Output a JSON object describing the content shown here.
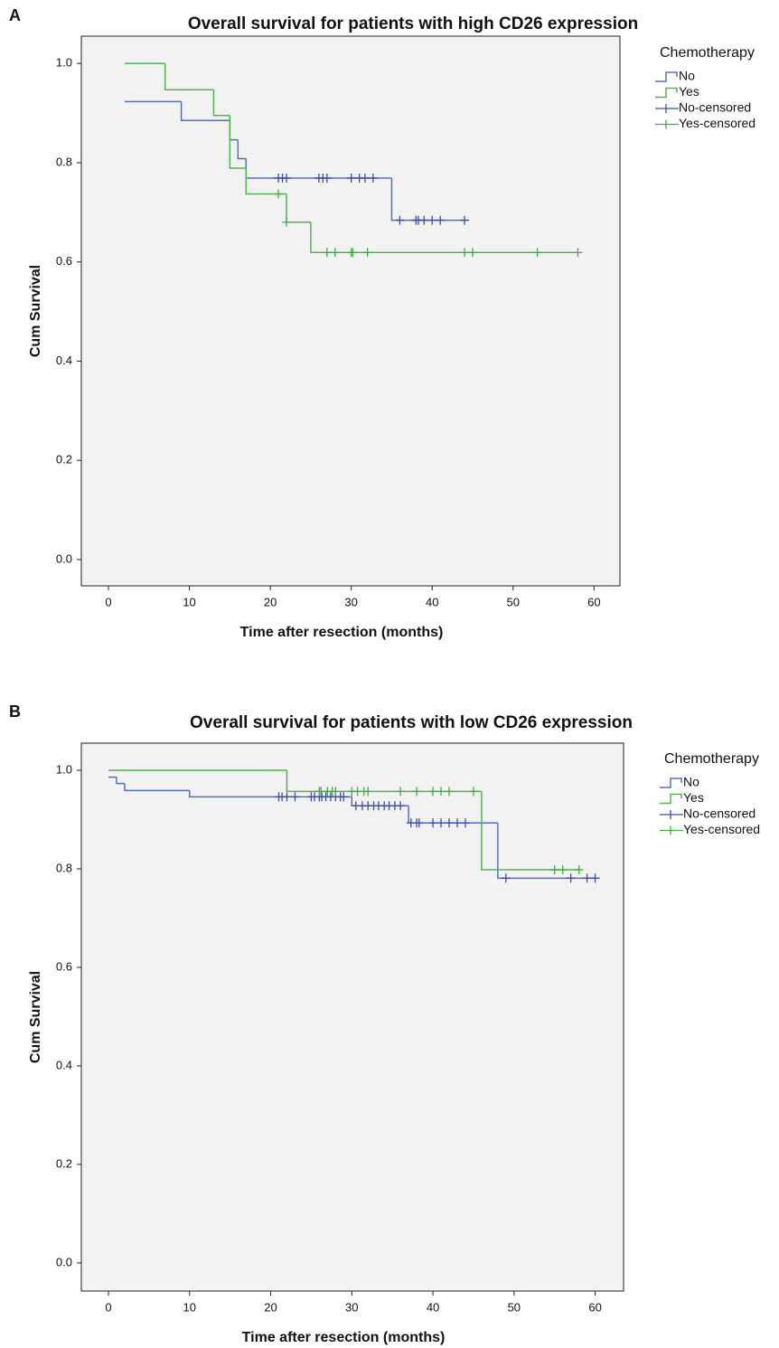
{
  "chart_data": [
    {
      "type": "step",
      "panel": "A",
      "title": "Overall survival for patients with high CD26 expression",
      "x_label": "Time after resection (months)",
      "y_label": "Cum Survival",
      "legend_title": "Chemotherapy",
      "xlim": [
        -3.35,
        63.2
      ],
      "ylim": [
        -0.053,
        1.055
      ],
      "xticks": [
        0,
        10,
        20,
        30,
        40,
        50,
        60
      ],
      "yticks": [
        {
          "value": 0,
          "label": "0.0"
        },
        {
          "value": 0.2,
          "label": "0.2"
        },
        {
          "value": 0.4,
          "label": "0.4"
        },
        {
          "value": 0.6,
          "label": "0.6"
        },
        {
          "value": 0.8,
          "label": "0.8"
        },
        {
          "value": 1.0,
          "label": "1.0"
        }
      ],
      "background": "#f2f2f2",
      "legend_position": "right",
      "series": [
        {
          "name": "No",
          "style": "step",
          "color": "#5470bd",
          "x": [
            2,
            9,
            15,
            16,
            17,
            35,
            44
          ],
          "values": [
            0.923,
            0.885,
            0.846,
            0.808,
            0.769,
            0.684,
            0.684
          ]
        },
        {
          "name": "Yes",
          "style": "step",
          "color": "#52b552",
          "x": [
            2,
            7,
            13,
            15,
            17,
            22,
            25,
            58
          ],
          "values": [
            1.0,
            0.947,
            0.895,
            0.789,
            0.737,
            0.68,
            0.619,
            0.619
          ]
        },
        {
          "name": "No-censored",
          "style": "censor",
          "color": "#3a4ea6",
          "x": [
            21,
            21.5,
            22,
            26,
            26.5,
            27,
            30,
            31,
            31.7,
            32.7,
            36,
            38,
            38.3,
            39,
            40,
            41,
            44
          ],
          "values": [
            0.769,
            0.769,
            0.769,
            0.769,
            0.769,
            0.769,
            0.769,
            0.769,
            0.769,
            0.769,
            0.684,
            0.684,
            0.684,
            0.684,
            0.684,
            0.684,
            0.684
          ]
        },
        {
          "name": "Yes-censored",
          "style": "censor",
          "color": "#3fae3f",
          "x": [
            21,
            22,
            27,
            28,
            30,
            30.2,
            32,
            44,
            45,
            53,
            58
          ],
          "values": [
            0.737,
            0.68,
            0.619,
            0.619,
            0.619,
            0.619,
            0.619,
            0.619,
            0.619,
            0.619,
            0.619
          ]
        }
      ]
    },
    {
      "type": "step",
      "panel": "B",
      "title": "Overall survival for patients with low CD26 expression",
      "x_label": "Time after resection (months)",
      "y_label": "Cum Survival",
      "legend_title": "Chemotherapy",
      "xlim": [
        -3.34,
        63.5
      ],
      "ylim": [
        -0.057,
        1.055
      ],
      "xticks": [
        0,
        10,
        20,
        30,
        40,
        50,
        60
      ],
      "yticks": [
        {
          "value": 0,
          "label": "0.0"
        },
        {
          "value": 0.2,
          "label": "0.2"
        },
        {
          "value": 0.4,
          "label": "0.4"
        },
        {
          "value": 0.6,
          "label": "0.6"
        },
        {
          "value": 0.8,
          "label": "0.8"
        },
        {
          "value": 1.0,
          "label": "1.0"
        }
      ],
      "background": "#f2f2f2",
      "legend_position": "right",
      "series": [
        {
          "name": "No",
          "style": "step",
          "color": "#5470bd",
          "x": [
            0,
            1,
            2,
            10,
            30,
            37,
            48,
            60
          ],
          "values": [
            0.986,
            0.973,
            0.959,
            0.946,
            0.928,
            0.893,
            0.781,
            0.781
          ]
        },
        {
          "name": "Yes",
          "style": "step",
          "color": "#52b552",
          "x": [
            0,
            22,
            46,
            58
          ],
          "values": [
            1.0,
            0.957,
            0.798,
            0.798
          ]
        },
        {
          "name": "No-censored",
          "style": "censor",
          "color": "#3a4ea6",
          "x": [
            21,
            21.4,
            22,
            23,
            25,
            25.4,
            26,
            26.3,
            26.8,
            27.4,
            28,
            28.6,
            29,
            30.5,
            31.3,
            32,
            32.7,
            33.3,
            34,
            34.6,
            35.3,
            36,
            37.3,
            38,
            38.3,
            40,
            41,
            42,
            43,
            44,
            49,
            57,
            59,
            60
          ],
          "values": [
            0.946,
            0.946,
            0.946,
            0.946,
            0.946,
            0.946,
            0.946,
            0.946,
            0.946,
            0.946,
            0.946,
            0.946,
            0.946,
            0.928,
            0.928,
            0.928,
            0.928,
            0.928,
            0.928,
            0.928,
            0.928,
            0.928,
            0.893,
            0.893,
            0.893,
            0.893,
            0.893,
            0.893,
            0.893,
            0.893,
            0.781,
            0.781,
            0.781,
            0.781
          ]
        },
        {
          "name": "Yes-censored",
          "style": "censor",
          "color": "#3fae3f",
          "x": [
            26,
            26.2,
            27,
            27.6,
            28,
            30,
            30.7,
            31.5,
            32,
            36,
            38,
            40,
            41,
            42,
            45,
            55,
            56,
            58
          ],
          "values": [
            0.957,
            0.957,
            0.957,
            0.957,
            0.957,
            0.957,
            0.957,
            0.957,
            0.957,
            0.957,
            0.957,
            0.957,
            0.957,
            0.957,
            0.957,
            0.798,
            0.798,
            0.798
          ]
        }
      ]
    }
  ]
}
